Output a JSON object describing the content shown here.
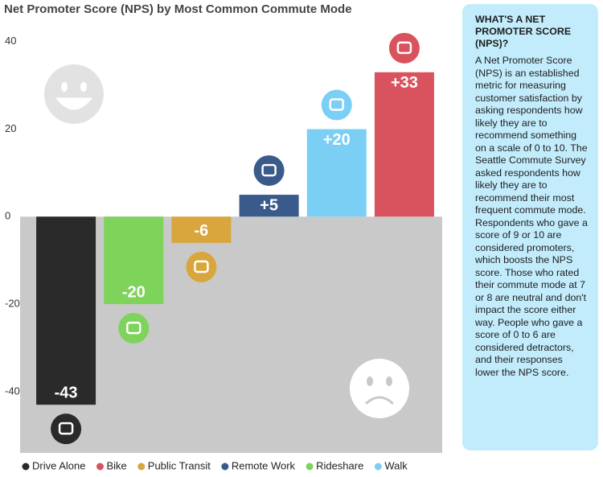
{
  "chart_data": {
    "type": "bar",
    "title": "Net Promoter Score (NPS) by Most Common Commute Mode",
    "categories": [
      "Drive Alone",
      "Rideshare",
      "Public Transit",
      "Remote Work",
      "Walk",
      "Bike"
    ],
    "values": [
      -43,
      -20,
      -6,
      5,
      20,
      33
    ],
    "value_labels": [
      "-43",
      "-20",
      "-6",
      "+5",
      "+20",
      "+33"
    ],
    "colors": [
      "#2a2a2a",
      "#7ed35b",
      "#d8a63c",
      "#3a5a8b",
      "#7ccff4",
      "#d9535e"
    ],
    "ylim": [
      -54,
      44
    ],
    "yticks": [
      40,
      20,
      0,
      -20,
      -40
    ],
    "grid": false,
    "legend": [
      {
        "name": "Drive Alone",
        "color": "#2a2a2a"
      },
      {
        "name": "Bike",
        "color": "#d9535e"
      },
      {
        "name": "Public Transit",
        "color": "#d8a63c"
      },
      {
        "name": "Remote Work",
        "color": "#3a5a8b"
      },
      {
        "name": "Rideshare",
        "color": "#7ed35b"
      },
      {
        "name": "Walk",
        "color": "#7ccff4"
      }
    ]
  },
  "sidebar": {
    "title": "WHAT'S A NET PROMOTER SCORE (NPS)?",
    "body": "A Net Promoter Score (NPS) is an established metric for measuring customer satisfaction by asking respondents how likely they are to recommend something on a scale of 0 to 10. The Seattle Commute Survey asked respondents how likely they are to recommend their most frequent commute mode. Respondents who gave a score of 9 or 10 are considered promoters, which boosts the NPS score. Those who rated their commute mode at 7 or 8 are neutral and don't impact the score either way. People who gave a score of 0 to 6 are considered detractors, and their responses lower the NPS score."
  }
}
